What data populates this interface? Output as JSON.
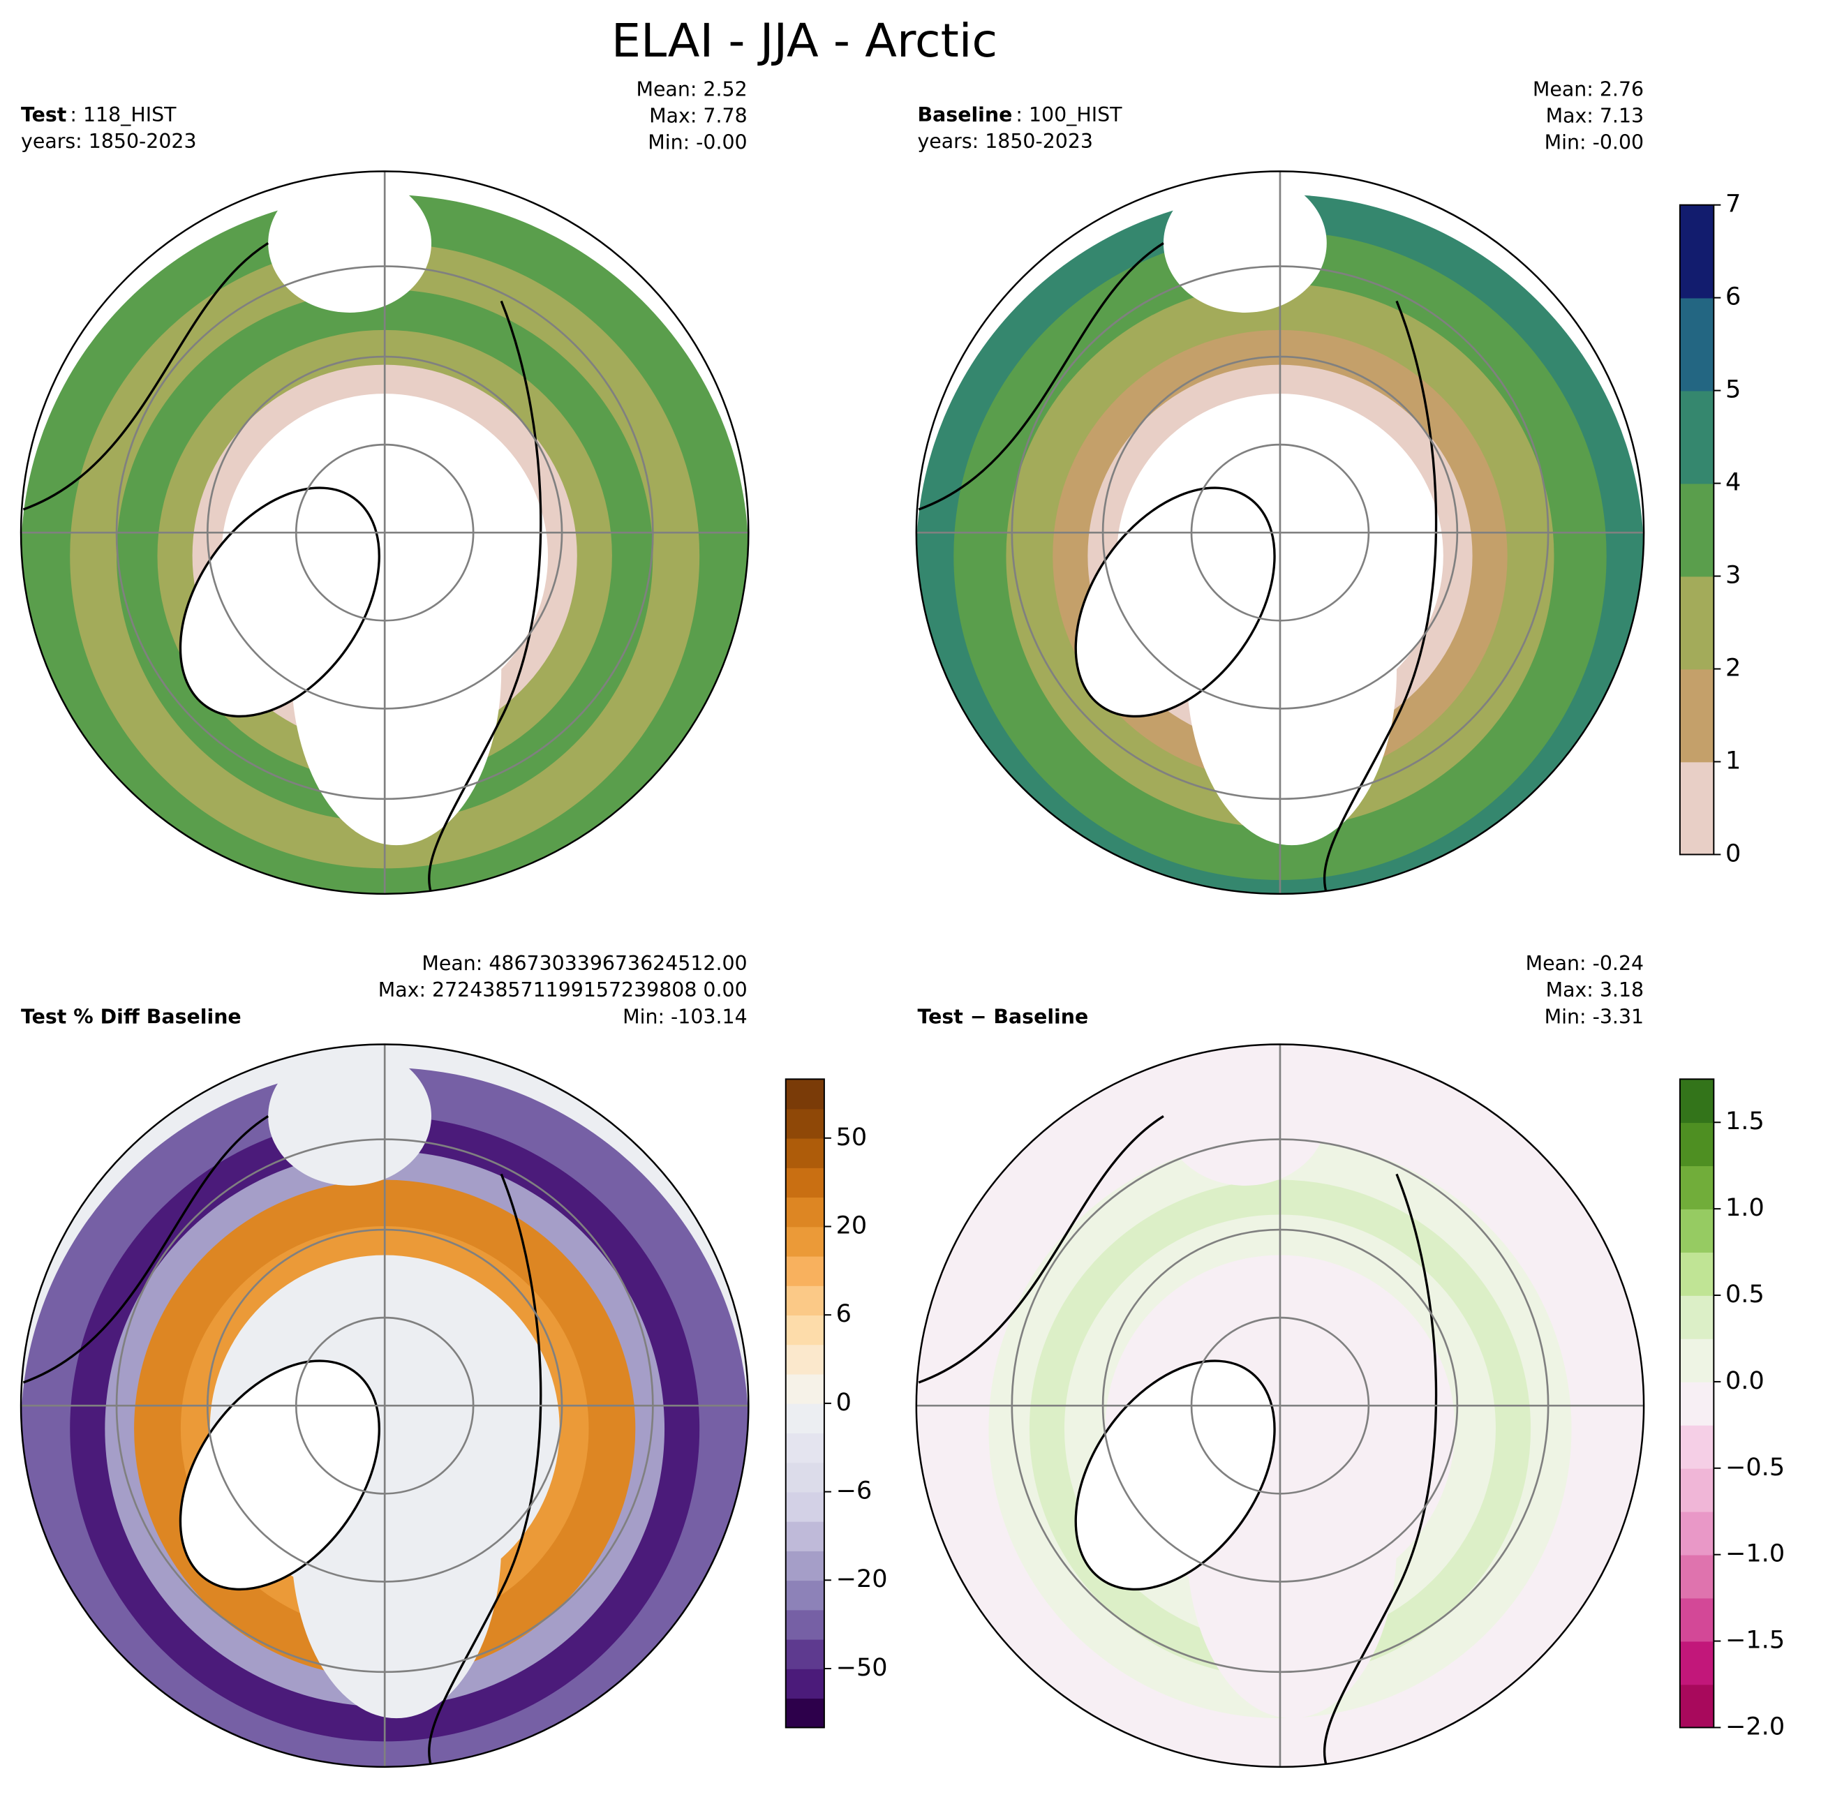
{
  "title": "ELAI - JJA - Arctic",
  "panels": [
    {
      "label": "Test",
      "case": ": 118_HIST",
      "years": "years: 1850-2023",
      "stats": [
        "Mean:  2.52",
        "Max:  7.78",
        "Min: -0.00"
      ]
    },
    {
      "label": "Baseline",
      "case": ": 100_HIST",
      "years": "years: 1850-2023",
      "stats": [
        "Mean:  2.76",
        "Max:  7.13",
        "Min: -0.00"
      ]
    },
    {
      "label": "Test % Diff Baseline",
      "stats": [
        "Mean: 486730339673624512.00",
        "Max: 272438571199157239808 0.00",
        "Min: -103.14"
      ]
    },
    {
      "label": "Test − Baseline",
      "stats": [
        "Mean: -0.24",
        "Max:  3.18",
        "Min: -3.31"
      ]
    }
  ],
  "colorbars": [
    {
      "levels": [
        0,
        1,
        2,
        3,
        4,
        5,
        6,
        7
      ],
      "colors": [
        "#e8cfc6",
        "#c4a06a",
        "#a3ab5a",
        "#5a9e4c",
        "#35876e",
        "#236682",
        "#121c6e"
      ],
      "ticks": [
        0,
        1,
        2,
        3,
        4,
        5,
        6,
        7
      ]
    },
    {
      "levels": [
        -70,
        -60,
        -50,
        -40,
        -30,
        -20,
        -15,
        -10,
        -6,
        -4,
        -2,
        0,
        2,
        4,
        6,
        10,
        15,
        20,
        30,
        40,
        50,
        60,
        70
      ],
      "colors": [
        "#2d004b",
        "#4b1b7a",
        "#5e3a8f",
        "#7660a5",
        "#8d82b8",
        "#a59ec8",
        "#bfbad9",
        "#d3d1e6",
        "#dcdcea",
        "#e4e4ef",
        "#eceef2",
        "#f6f2e8",
        "#fbe8cc",
        "#fddcaa",
        "#fbc987",
        "#f8b15e",
        "#eb9a38",
        "#dd8623",
        "#c96f12",
        "#ae5c0a",
        "#8f4807",
        "#7a3b08"
      ],
      "ticks": [
        {
          "value": -50,
          "label": "−50"
        },
        {
          "value": -20,
          "label": "−20"
        },
        {
          "value": -6,
          "label": "−6"
        },
        0,
        6,
        20,
        50
      ]
    },
    {
      "levels": [
        -2,
        -1.75,
        -1.5,
        -1.25,
        -1,
        -0.75,
        -0.5,
        -0.25,
        0,
        0.25,
        0.5,
        0.75,
        1,
        1.25,
        1.5,
        1.75
      ],
      "colors": [
        "#a8095c",
        "#c2177a",
        "#d34897",
        "#df73ae",
        "#e998c7",
        "#f0b6d7",
        "#f5cfe6",
        "#f7eff4",
        "#eef4e4",
        "#dcefc7",
        "#c0e495",
        "#96cb62",
        "#71ad3a",
        "#4e8f22",
        "#33741a"
      ],
      "ticks": [
        {
          "value": -2,
          "label": "−2.0"
        },
        {
          "value": -1.5,
          "label": "−1.5"
        },
        {
          "value": -1,
          "label": "−1.0"
        },
        {
          "value": -0.5,
          "label": "−0.5"
        },
        {
          "value": 0,
          "label": "0.0"
        },
        0.5,
        {
          "value": 1,
          "label": "1.0"
        },
        1.5
      ]
    }
  ]
}
